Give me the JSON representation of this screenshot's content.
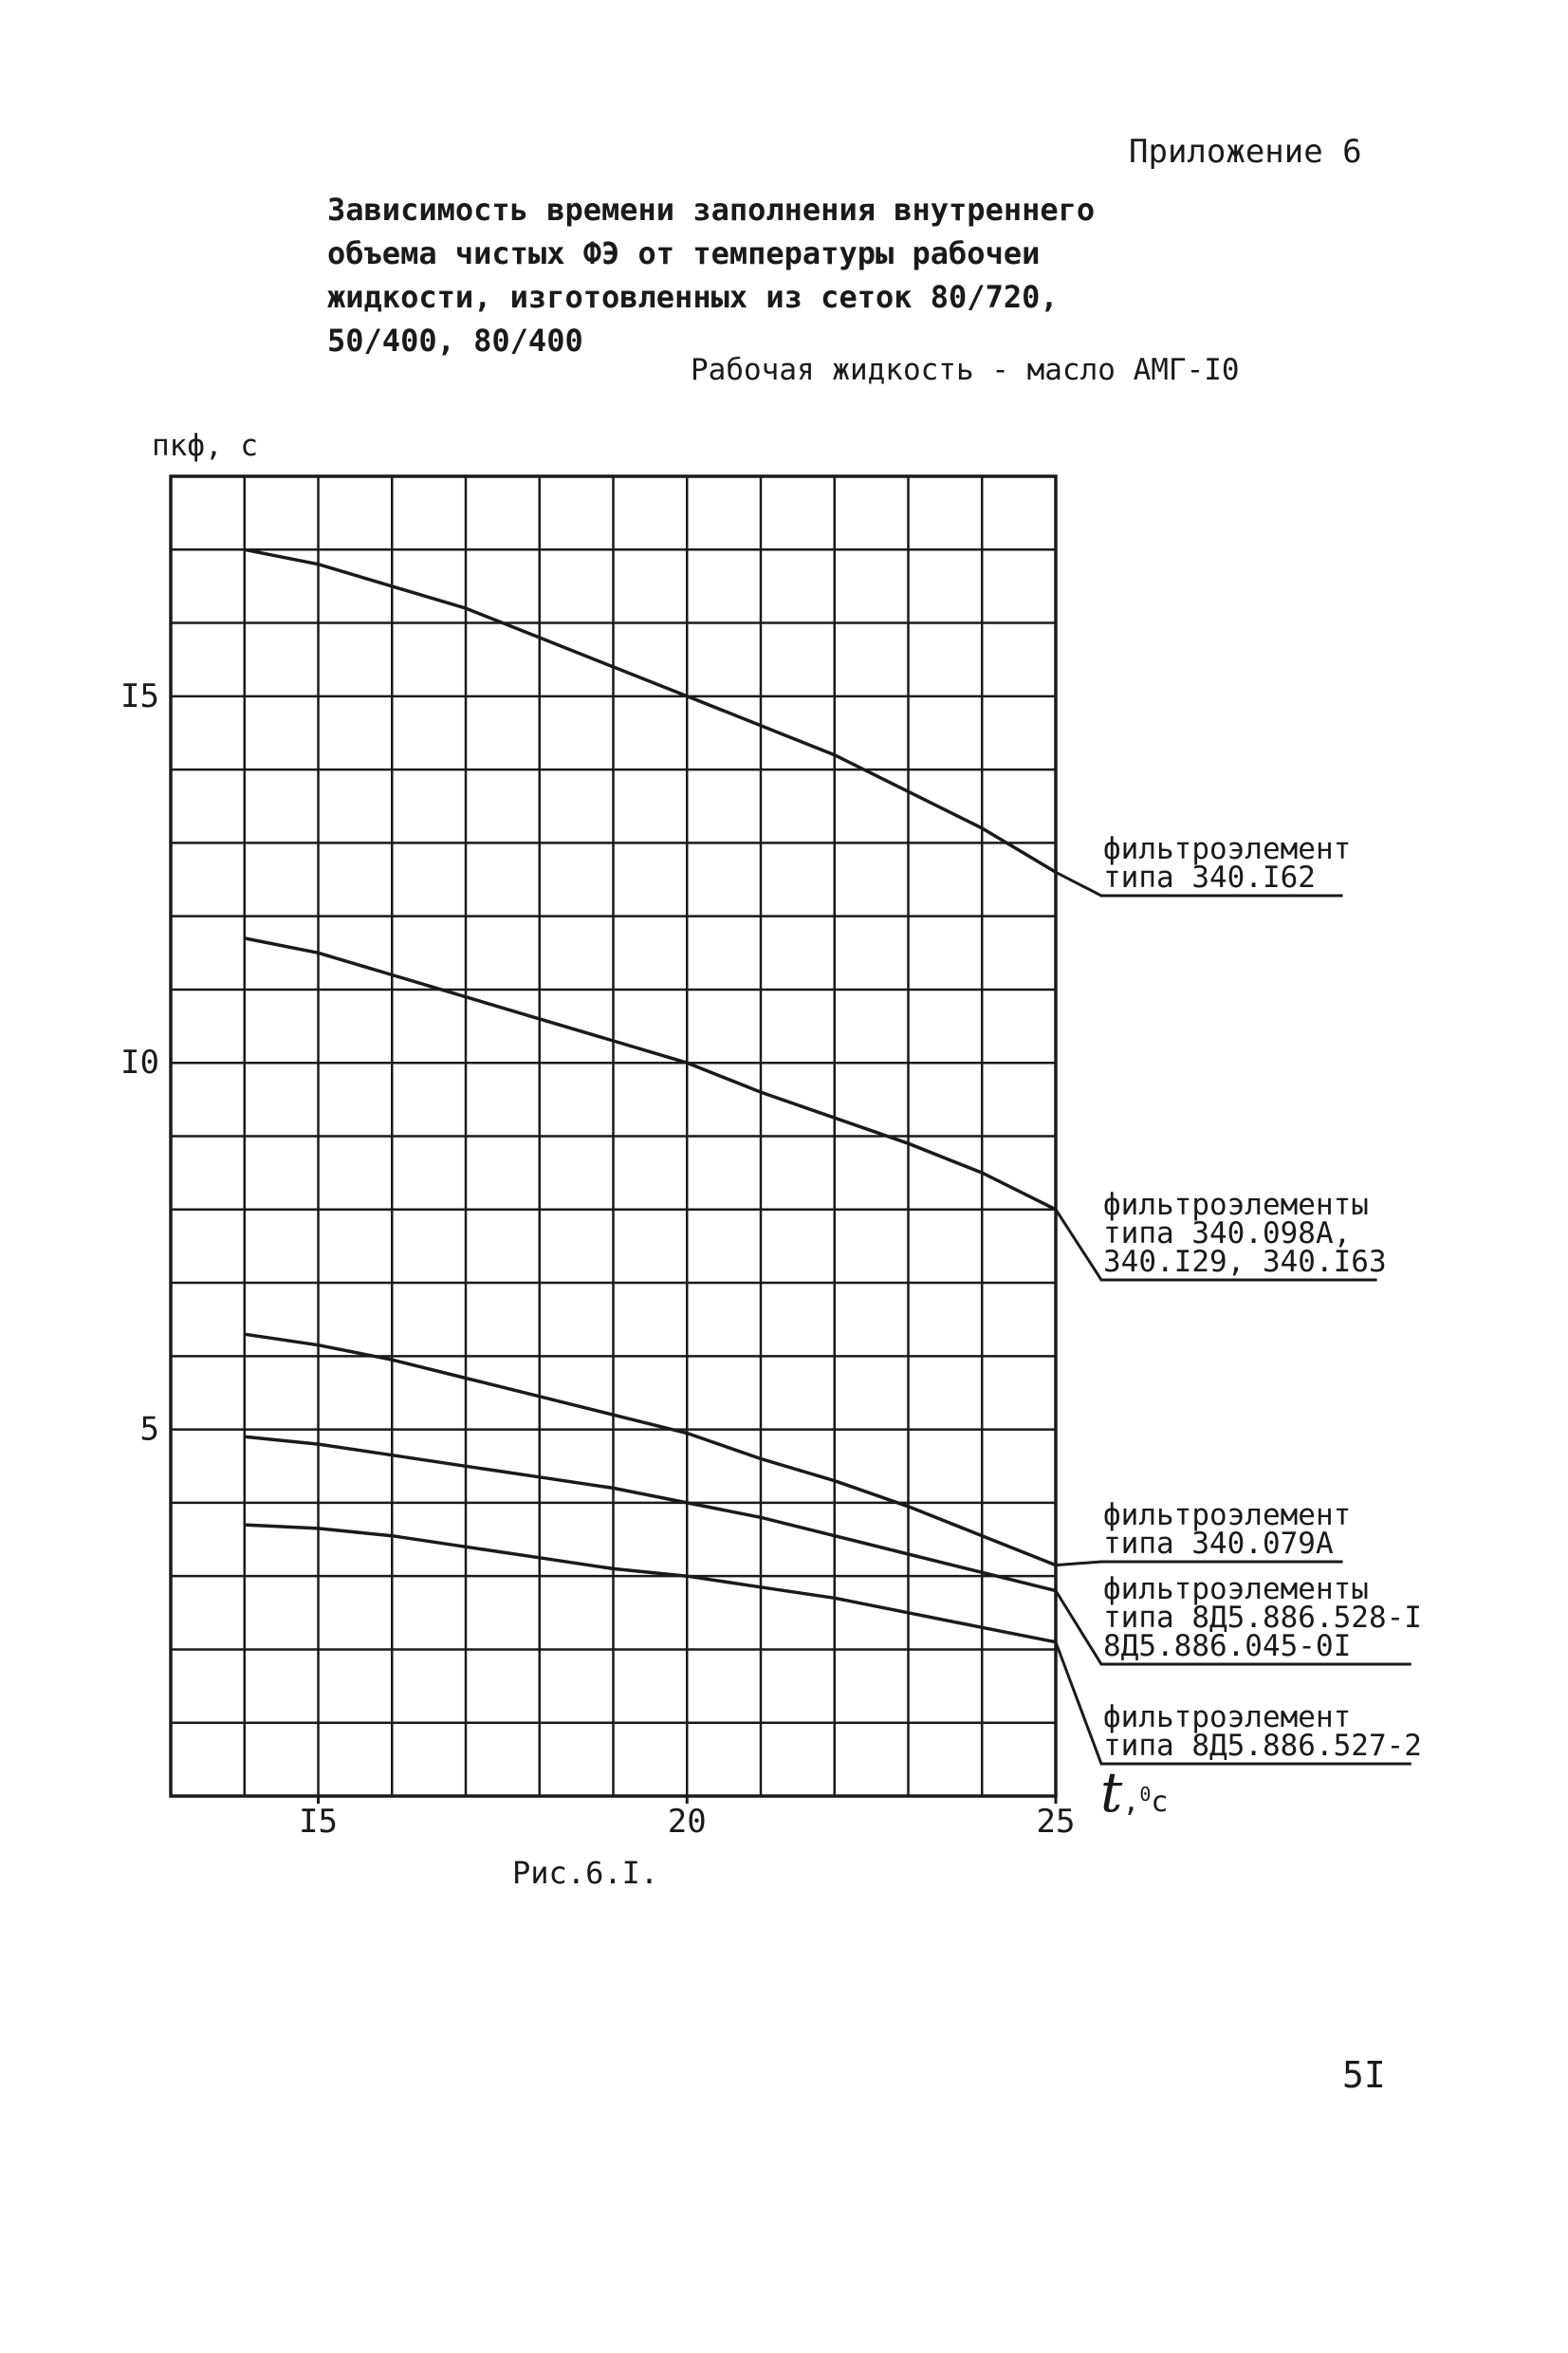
{
  "header": {
    "appendix": "Приложение 6",
    "title_lines": [
      "Зависимость времени заполнения внутреннего",
      "объема чистых ФЭ от температуры рабочеи",
      "жидкости, изготовленных из сеток 80/720,",
      "50/400, 80/400"
    ],
    "fluid": "Рабочая жидкость - масло АМГ-I0"
  },
  "footer": {
    "caption": "Рис.6.I.",
    "page_number": "5I"
  },
  "chart_data": {
    "type": "line",
    "ylabel": "пкф, с",
    "xlabel_symbol": "t",
    "xlabel_unit": "с",
    "xlabel_degree": "0",
    "xlim": [
      13,
      25
    ],
    "ylim": [
      0,
      18
    ],
    "x_ticks": [
      {
        "value": 15,
        "label": "I5"
      },
      {
        "value": 20,
        "label": "20"
      },
      {
        "value": 25,
        "label": "25"
      }
    ],
    "y_ticks": [
      {
        "value": 5,
        "label": "5"
      },
      {
        "value": 10,
        "label": "I0"
      },
      {
        "value": 15,
        "label": "I5"
      }
    ],
    "grid": true,
    "line_color": "#1a1a1a",
    "series": [
      {
        "name_lines": [
          "фильтроэлемент",
          "типа 340.I62"
        ],
        "points": [
          [
            14,
            17.0
          ],
          [
            15,
            16.8
          ],
          [
            16,
            16.5
          ],
          [
            17,
            16.2
          ],
          [
            18,
            15.8
          ],
          [
            19,
            15.4
          ],
          [
            20,
            15.0
          ],
          [
            21,
            14.6
          ],
          [
            22,
            14.2
          ],
          [
            23,
            13.7
          ],
          [
            24,
            13.2
          ],
          [
            25,
            12.6
          ]
        ]
      },
      {
        "name_lines": [
          "фильтроэлементы",
          "типа 340.098А,",
          "340.I29, 340.I63"
        ],
        "points": [
          [
            14,
            11.7
          ],
          [
            15,
            11.5
          ],
          [
            16,
            11.2
          ],
          [
            17,
            10.9
          ],
          [
            18,
            10.6
          ],
          [
            19,
            10.3
          ],
          [
            20,
            10.0
          ],
          [
            21,
            9.6
          ],
          [
            22,
            9.25
          ],
          [
            23,
            8.9
          ],
          [
            24,
            8.5
          ],
          [
            25,
            8.0
          ]
        ]
      },
      {
        "name_lines": [
          "фильтроэлемент",
          "типа 340.079А"
        ],
        "points": [
          [
            14,
            6.3
          ],
          [
            15,
            6.15
          ],
          [
            16,
            5.95
          ],
          [
            17,
            5.7
          ],
          [
            18,
            5.45
          ],
          [
            19,
            5.2
          ],
          [
            20,
            4.95
          ],
          [
            21,
            4.6
          ],
          [
            22,
            4.3
          ],
          [
            23,
            3.95
          ],
          [
            24,
            3.55
          ],
          [
            25,
            3.15
          ]
        ]
      },
      {
        "name_lines": [
          "фильтроэлементы",
          "типа 8Д5.886.528-I",
          "8Д5.886.045-0I"
        ],
        "points": [
          [
            14,
            4.9
          ],
          [
            15,
            4.8
          ],
          [
            16,
            4.65
          ],
          [
            17,
            4.5
          ],
          [
            18,
            4.35
          ],
          [
            19,
            4.2
          ],
          [
            20,
            4.0
          ],
          [
            21,
            3.8
          ],
          [
            22,
            3.55
          ],
          [
            23,
            3.3
          ],
          [
            24,
            3.05
          ],
          [
            25,
            2.8
          ]
        ]
      },
      {
        "name_lines": [
          "фильтроэлемент",
          "типа 8Д5.886.527-2"
        ],
        "points": [
          [
            14,
            3.7
          ],
          [
            15,
            3.65
          ],
          [
            16,
            3.55
          ],
          [
            17,
            3.4
          ],
          [
            18,
            3.25
          ],
          [
            19,
            3.1
          ],
          [
            20,
            3.0
          ],
          [
            21,
            2.85
          ],
          [
            22,
            2.7
          ],
          [
            23,
            2.5
          ],
          [
            24,
            2.3
          ],
          [
            25,
            2.1
          ]
        ]
      }
    ]
  }
}
